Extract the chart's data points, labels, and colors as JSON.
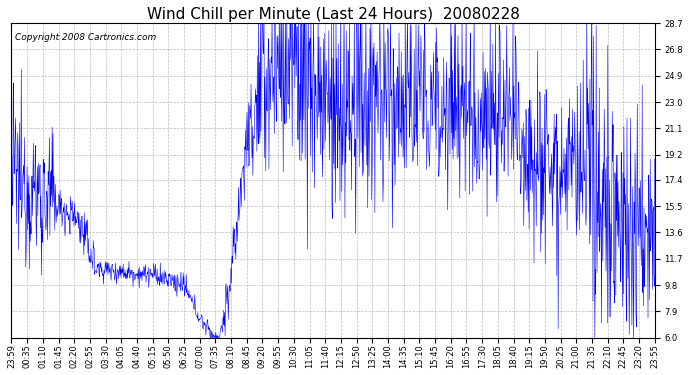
{
  "title": "Wind Chill per Minute (Last 24 Hours)  20080228",
  "copyright": "Copyright 2008 Cartronics.com",
  "line_color": "#0000FF",
  "background_color": "#FFFFFF",
  "plot_bg_color": "#FFFFFF",
  "grid_color": "#AAAAAA",
  "ylim": [
    6.0,
    28.7
  ],
  "yticks": [
    6.0,
    7.9,
    9.8,
    11.7,
    13.6,
    15.5,
    17.4,
    19.2,
    21.1,
    23.0,
    24.9,
    26.8,
    28.7
  ],
  "xtick_labels": [
    "23:59",
    "00:35",
    "01:10",
    "01:45",
    "02:20",
    "02:55",
    "03:30",
    "04:05",
    "04:40",
    "05:15",
    "05:50",
    "06:25",
    "07:00",
    "07:35",
    "08:10",
    "08:45",
    "09:20",
    "09:55",
    "10:30",
    "11:05",
    "11:40",
    "12:15",
    "12:50",
    "13:25",
    "14:00",
    "14:35",
    "15:10",
    "15:45",
    "16:20",
    "16:55",
    "17:30",
    "18:05",
    "18:40",
    "19:15",
    "19:50",
    "20:25",
    "21:00",
    "21:35",
    "22:10",
    "22:45",
    "23:20",
    "23:55"
  ],
  "title_fontsize": 11,
  "copyright_fontsize": 6.5,
  "tick_fontsize": 6.0,
  "figsize": [
    6.9,
    3.75
  ],
  "dpi": 100
}
